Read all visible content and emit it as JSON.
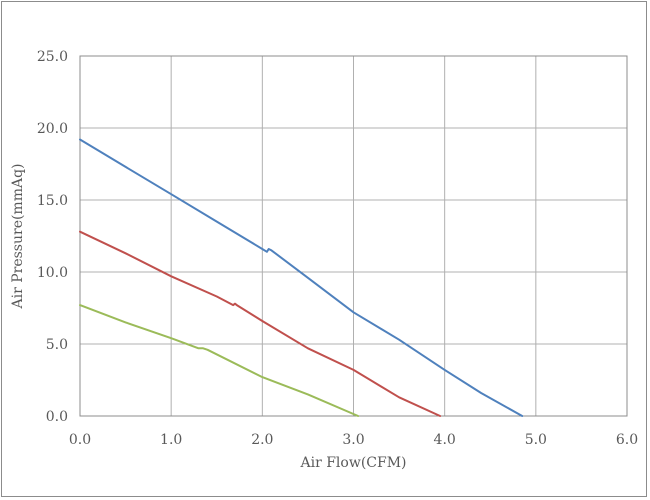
{
  "chart_data": {
    "type": "line",
    "title": "",
    "xlabel": "Air Flow(CFM)",
    "ylabel": "Air Pressure(mmAq)",
    "xlim": [
      0,
      6
    ],
    "ylim": [
      0,
      25
    ],
    "x_ticks": [
      0,
      1,
      2,
      3,
      4,
      5,
      6
    ],
    "x_tick_labels": [
      "0.0",
      "1.0",
      "2.0",
      "3.0",
      "4.0",
      "5.0",
      "6.0"
    ],
    "y_ticks": [
      0,
      5,
      10,
      15,
      20,
      25
    ],
    "y_tick_labels": [
      "0.0",
      "5.0",
      "10.0",
      "15.0",
      "20.0",
      "25.0"
    ],
    "grid": true,
    "legend": "none",
    "series": [
      {
        "color": "#4f81bd",
        "x": [
          0.0,
          0.5,
          1.0,
          1.5,
          2.0,
          2.05,
          2.07,
          2.1,
          2.5,
          3.0,
          3.5,
          4.0,
          4.4,
          4.85
        ],
        "y": [
          19.2,
          17.3,
          15.4,
          13.5,
          11.6,
          11.4,
          11.6,
          11.5,
          9.6,
          7.2,
          5.3,
          3.2,
          1.6,
          0.0
        ]
      },
      {
        "color": "#c0504d",
        "x": [
          0.0,
          0.5,
          1.0,
          1.5,
          1.68,
          1.7,
          1.72,
          2.0,
          2.5,
          3.0,
          3.5,
          3.95
        ],
        "y": [
          12.8,
          11.3,
          9.7,
          8.3,
          7.7,
          7.8,
          7.7,
          6.6,
          4.7,
          3.2,
          1.3,
          0.0
        ]
      },
      {
        "color": "#9bbb59",
        "x": [
          0.0,
          0.5,
          1.0,
          1.3,
          1.35,
          1.4,
          2.0,
          2.5,
          3.05
        ],
        "y": [
          7.7,
          6.5,
          5.4,
          4.7,
          4.7,
          4.6,
          2.7,
          1.5,
          0.0
        ]
      }
    ]
  }
}
